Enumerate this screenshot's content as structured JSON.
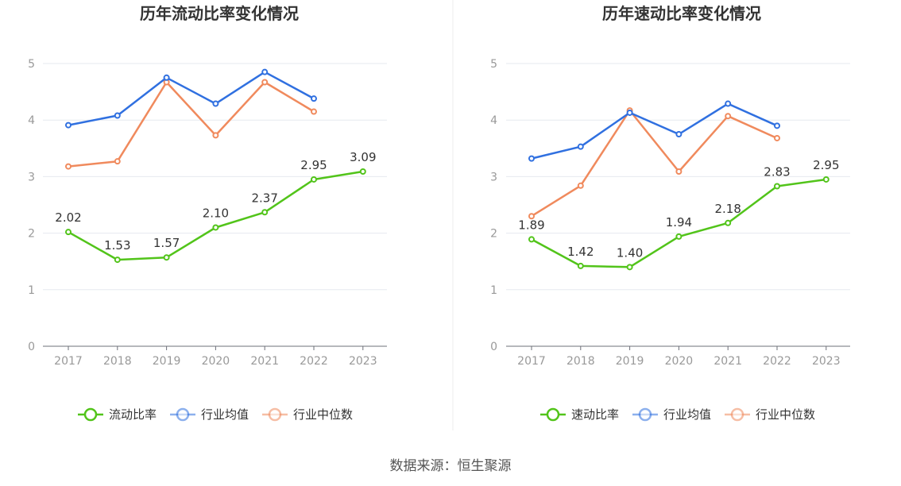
{
  "source_text": "数据来源：恒生聚源",
  "chart_data": [
    {
      "type": "line",
      "title": "历年流动比率变化情况",
      "categories": [
        "2017",
        "2018",
        "2019",
        "2020",
        "2021",
        "2022",
        "2023"
      ],
      "ylim": [
        0,
        5
      ],
      "yticks": [
        0,
        1,
        2,
        3,
        4,
        5
      ],
      "grid": true,
      "legend_position": "bottom",
      "series": [
        {
          "name": "流动比率",
          "color": "#52c41a",
          "values": [
            2.02,
            1.53,
            1.57,
            2.1,
            2.37,
            2.95,
            3.09
          ],
          "labels": [
            "2.02",
            "1.53",
            "1.57",
            "2.10",
            "2.37",
            "2.95",
            "3.09"
          ]
        },
        {
          "name": "行业均值",
          "color": "#3070e0",
          "values": [
            3.91,
            4.08,
            4.75,
            4.29,
            4.85,
            4.38,
            null
          ]
        },
        {
          "name": "行业中位数",
          "color": "#f08a5d",
          "values": [
            3.18,
            3.27,
            4.67,
            3.73,
            4.67,
            4.15,
            null
          ]
        }
      ]
    },
    {
      "type": "line",
      "title": "历年速动比率变化情况",
      "categories": [
        "2017",
        "2018",
        "2019",
        "2020",
        "2021",
        "2022",
        "2023"
      ],
      "ylim": [
        0,
        5
      ],
      "yticks": [
        0,
        1,
        2,
        3,
        4,
        5
      ],
      "grid": true,
      "legend_position": "bottom",
      "series": [
        {
          "name": "速动比率",
          "color": "#52c41a",
          "values": [
            1.89,
            1.42,
            1.4,
            1.94,
            2.18,
            2.83,
            2.95
          ],
          "labels": [
            "1.89",
            "1.42",
            "1.40",
            "1.94",
            "2.18",
            "2.83",
            "2.95"
          ]
        },
        {
          "name": "行业均值",
          "color": "#3070e0",
          "values": [
            3.32,
            3.53,
            4.13,
            3.75,
            4.29,
            3.9,
            null
          ]
        },
        {
          "name": "行业中位数",
          "color": "#f08a5d",
          "values": [
            2.3,
            2.84,
            4.17,
            3.09,
            4.07,
            3.68,
            null
          ]
        }
      ]
    }
  ]
}
